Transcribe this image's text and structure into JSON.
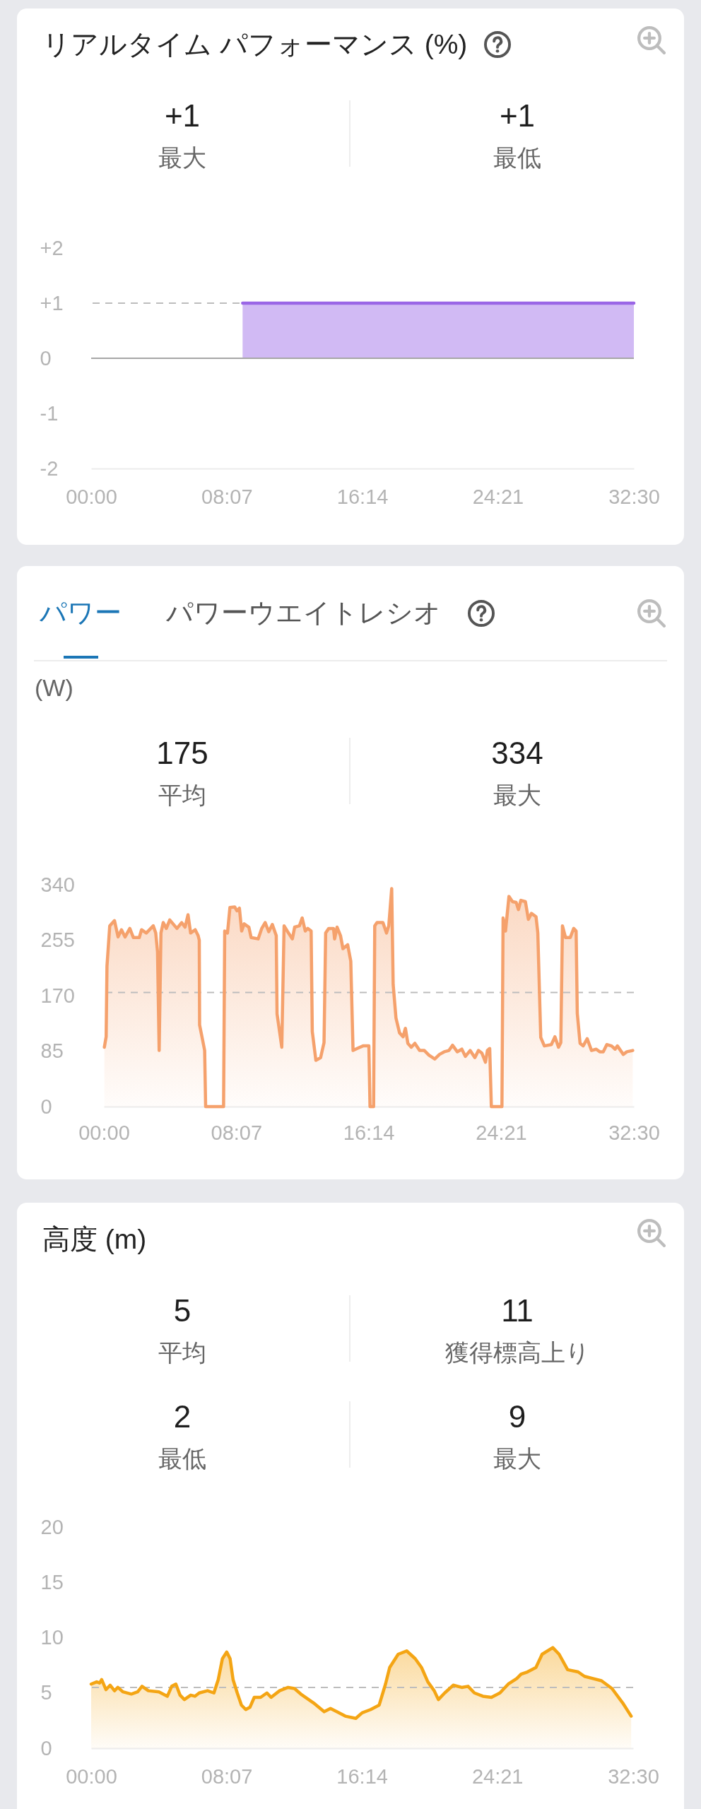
{
  "chart_data": [
    {
      "type": "area",
      "title": "リアルタイム パフォーマンス (%)",
      "annotations": [
        "+1",
        "最大",
        "+1",
        "最低"
      ],
      "x": [
        9.07,
        32.5
      ],
      "values": [
        1,
        1
      ],
      "color": "#9a66e6",
      "xlim": [
        0,
        32.5
      ],
      "ylim": [
        -2,
        2
      ],
      "xticks": [
        {
          "value": 0,
          "label": "00:00"
        },
        {
          "value": 8.1167,
          "label": "08:07"
        },
        {
          "value": 16.2333,
          "label": "16:14"
        },
        {
          "value": 24.35,
          "label": "24:21"
        },
        {
          "value": 32.5,
          "label": "32:30"
        }
      ],
      "yticks": [
        {
          "value": -2,
          "label": "-2"
        },
        {
          "value": -1,
          "label": "-1"
        },
        0,
        {
          "value": 1,
          "label": "+1"
        },
        {
          "value": 2,
          "label": "+2"
        }
      ],
      "ref_lines": [
        {
          "axis": "y",
          "value": 1,
          "line_style": "dashed",
          "color": "#bdbdbd"
        },
        {
          "axis": "y",
          "value": 0,
          "color": "#a6a6a6"
        }
      ]
    },
    {
      "type": "area",
      "title": "パワー",
      "subtitle": "パワーウエイトレシオ",
      "ylabel": "(W)",
      "annotations": [
        "175",
        "平均",
        "334",
        "最大"
      ],
      "x": [
        0.03,
        0.14,
        0.19,
        0.36,
        0.65,
        0.87,
        1.08,
        1.3,
        1.59,
        1.81,
        2.17,
        2.31,
        2.6,
        3.03,
        3.18,
        3.29,
        3.39,
        3.5,
        3.64,
        3.83,
        4.04,
        4.48,
        4.77,
        4.98,
        5.16,
        5.32,
        5.6,
        5.78,
        5.85,
        5.87,
        6.07,
        6.18,
        6.24,
        7.34,
        7.41,
        7.58,
        7.73,
        8.02,
        8.16,
        8.31,
        8.45,
        8.6,
        8.89,
        9.03,
        9.46,
        9.68,
        9.89,
        10.11,
        10.33,
        10.57,
        10.62,
        10.91,
        11.05,
        11.27,
        11.56,
        11.7,
        11.99,
        12.16,
        12.35,
        12.5,
        12.71,
        12.78,
        13.0,
        13.29,
        13.5,
        13.6,
        13.79,
        14.08,
        14.15,
        14.3,
        14.51,
        14.66,
        14.95,
        15.14,
        15.28,
        15.53,
        15.89,
        16.25,
        16.32,
        16.54,
        16.61,
        16.75,
        17.11,
        17.33,
        17.47,
        17.65,
        17.74,
        17.91,
        18.13,
        18.35,
        18.49,
        18.64,
        18.85,
        19.07,
        19.36,
        19.65,
        19.93,
        20.29,
        20.58,
        20.87,
        21.16,
        21.38,
        21.67,
        21.95,
        22.17,
        22.46,
        22.75,
        22.97,
        23.18,
        23.4,
        23.52,
        23.66,
        23.76,
        24.41,
        24.48,
        24.63,
        24.84,
        25.06,
        25.28,
        25.42,
        25.57,
        25.85,
        26.03,
        26.22,
        26.5,
        26.61,
        26.79,
        27.01,
        27.44,
        27.66,
        27.88,
        28.02,
        28.12,
        28.31,
        28.6,
        28.81,
        28.96,
        29.03,
        29.2,
        29.39,
        29.64,
        29.9,
        30.19,
        30.41,
        30.62,
        30.84,
        31.13,
        31.35,
        31.49,
        31.85,
        32.07,
        32.43
      ],
      "values": [
        91,
        107,
        215,
        277,
        285,
        260,
        271,
        260,
        273,
        259,
        259,
        271,
        266,
        277,
        266,
        237,
        86,
        266,
        282,
        273,
        286,
        273,
        282,
        275,
        294,
        266,
        271,
        262,
        255,
        125,
        100,
        86,
        0,
        0,
        269,
        266,
        305,
        306,
        300,
        304,
        269,
        280,
        275,
        259,
        257,
        273,
        282,
        268,
        279,
        262,
        142,
        91,
        277,
        268,
        257,
        275,
        277,
        289,
        269,
        273,
        269,
        115,
        71,
        75,
        98,
        266,
        273,
        273,
        257,
        275,
        262,
        242,
        248,
        223,
        86,
        89,
        93,
        93,
        0,
        0,
        277,
        282,
        282,
        266,
        277,
        334,
        187,
        136,
        113,
        107,
        120,
        97,
        91,
        97,
        86,
        86,
        79,
        73,
        80,
        84,
        86,
        94,
        84,
        88,
        77,
        86,
        75,
        86,
        82,
        68,
        86,
        89,
        0,
        0,
        289,
        269,
        322,
        314,
        313,
        302,
        316,
        314,
        287,
        296,
        291,
        266,
        106,
        93,
        95,
        107,
        91,
        98,
        277,
        259,
        259,
        273,
        269,
        143,
        97,
        93,
        104,
        86,
        88,
        84,
        84,
        95,
        93,
        88,
        93,
        80,
        84,
        86
      ],
      "color": "#f5a16c",
      "xlim": [
        0,
        32.5
      ],
      "ylim": [
        0,
        340
      ],
      "xticks": [
        {
          "value": 0,
          "label": "00:00"
        },
        {
          "value": 8.1167,
          "label": "08:07"
        },
        {
          "value": 16.2333,
          "label": "16:14"
        },
        {
          "value": 24.35,
          "label": "24:21"
        },
        {
          "value": 32.5,
          "label": "32:30"
        }
      ],
      "yticks": [
        0,
        85,
        170,
        255,
        340
      ],
      "ref_lines": [
        {
          "axis": "y",
          "value": 175,
          "line_style": "dashed",
          "color": "#bdbdbd"
        }
      ]
    },
    {
      "type": "area",
      "title": "高度 (m)",
      "annotations": [
        "5",
        "平均",
        "11",
        "獲得標高上り",
        "2",
        "最低",
        "9",
        "最大"
      ],
      "x": [
        0,
        0.33,
        0.51,
        0.63,
        0.89,
        1.14,
        1.4,
        1.6,
        1.9,
        2.41,
        2.79,
        3.05,
        3.43,
        4.06,
        4.57,
        4.83,
        5.08,
        5.33,
        5.59,
        5.97,
        6.22,
        6.48,
        6.98,
        7.36,
        7.62,
        7.87,
        8.13,
        8.33,
        8.51,
        8.76,
        9.01,
        9.27,
        9.52,
        9.78,
        10.16,
        10.54,
        10.79,
        11.3,
        11.81,
        12.19,
        12.57,
        13.33,
        13.97,
        14.35,
        14.73,
        15.24,
        15.87,
        16.25,
        16.76,
        17.27,
        17.65,
        17.9,
        18.41,
        18.92,
        19.43,
        19.81,
        20.19,
        20.57,
        20.82,
        21.2,
        21.71,
        22.22,
        22.6,
        22.98,
        23.49,
        24,
        24.51,
        25.01,
        25.52,
        25.78,
        26.16,
        26.67,
        27.04,
        27.68,
        28.06,
        28.57,
        29.2,
        29.58,
        30.09,
        30.6,
        31.23,
        31.87,
        32.38
      ],
      "values": [
        5.8,
        6.0,
        5.9,
        6.2,
        5.3,
        5.7,
        5.2,
        5.5,
        5.1,
        4.9,
        5.1,
        5.6,
        5.2,
        5.1,
        4.7,
        5.6,
        5.8,
        4.8,
        4.4,
        4.8,
        4.7,
        5.0,
        5.2,
        5.0,
        6.2,
        8.1,
        8.7,
        8.1,
        6.2,
        5.0,
        3.9,
        3.5,
        3.7,
        4.6,
        4.6,
        5.0,
        4.6,
        5.2,
        5.5,
        5.4,
        4.9,
        4.1,
        3.3,
        3.6,
        3.3,
        2.9,
        2.7,
        3.2,
        3.5,
        3.9,
        5.8,
        7.3,
        8.5,
        8.8,
        8.1,
        7.3,
        6.0,
        5.2,
        4.4,
        5.0,
        5.7,
        5.5,
        5.6,
        5.0,
        4.7,
        4.6,
        5.0,
        5.8,
        6.3,
        6.7,
        6.9,
        7.3,
        8.5,
        9.1,
        8.5,
        7.1,
        6.9,
        6.5,
        6.3,
        6.1,
        5.4,
        4.1,
        2.9
      ],
      "color": "#f4a514",
      "xlim": [
        0,
        32.5
      ],
      "ylim": [
        0,
        20
      ],
      "xticks": [
        {
          "value": 0,
          "label": "00:00"
        },
        {
          "value": 8.1167,
          "label": "08:07"
        },
        {
          "value": 16.2333,
          "label": "16:14"
        },
        {
          "value": 24.35,
          "label": "24:21"
        },
        {
          "value": 32.5,
          "label": "32:30"
        }
      ],
      "yticks": [
        0,
        5,
        10,
        15,
        20
      ],
      "ref_lines": [
        {
          "axis": "y",
          "value": 5.5,
          "line_style": "dashed",
          "color": "#bdbdbd"
        }
      ]
    }
  ]
}
